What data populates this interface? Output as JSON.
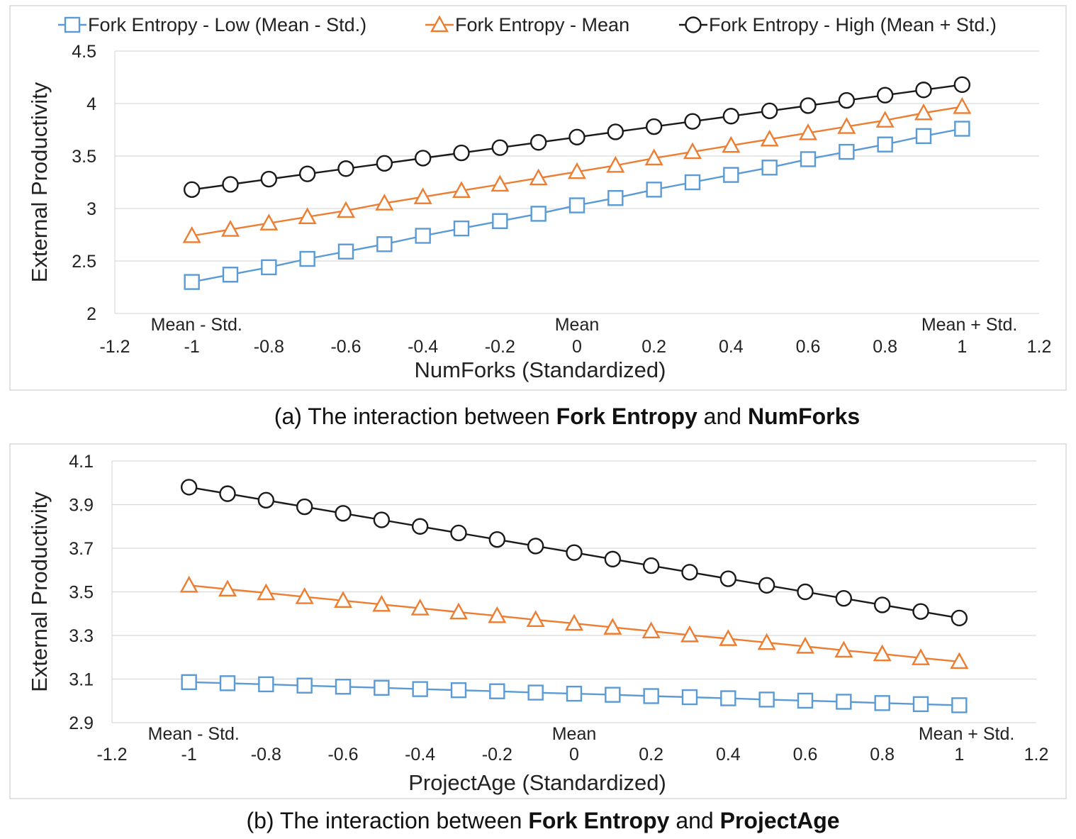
{
  "legend": {
    "items": [
      {
        "label": "Fork Entropy - Low (Mean - Std.)",
        "color": "#5b9bd5",
        "marker": "square"
      },
      {
        "label": "Fork Entropy - Mean",
        "color": "#ed7d31",
        "marker": "triangle"
      },
      {
        "label": "Fork Entropy - High (Mean + Std.)",
        "color": "#1a1a1a",
        "marker": "circle"
      }
    ]
  },
  "chart_data": [
    {
      "type": "line",
      "xlabel": "NumForks (Standardized)",
      "ylabel": "External Productivity",
      "xlim": [
        -1.2,
        1.2
      ],
      "ylim": [
        2,
        4.5
      ],
      "x_ticks": [
        "-1.2",
        "-1",
        "-0.8",
        "-0.6",
        "-0.4",
        "-0.2",
        "0",
        "0.2",
        "0.4",
        "0.6",
        "0.8",
        "1",
        "1.2"
      ],
      "y_ticks": [
        "2",
        "2.5",
        "3",
        "3.5",
        "4",
        "4.5"
      ],
      "annotations": [
        {
          "text": "Mean - Std.",
          "x": -1
        },
        {
          "text": "Mean",
          "x": 0
        },
        {
          "text": "Mean + Std.",
          "x": 1
        }
      ],
      "grid": "horizontal",
      "legend": "top",
      "x": [
        -1,
        -0.9,
        -0.8,
        -0.7,
        -0.6,
        -0.5,
        -0.4,
        -0.3,
        -0.2,
        -0.1,
        0,
        0.1,
        0.2,
        0.3,
        0.4,
        0.5,
        0.6,
        0.7,
        0.8,
        0.9,
        1
      ],
      "series": [
        {
          "name": "Fork Entropy - Low (Mean - Std.)",
          "values": [
            2.3,
            2.37,
            2.44,
            2.52,
            2.59,
            2.66,
            2.74,
            2.81,
            2.88,
            2.95,
            3.03,
            3.1,
            3.18,
            3.25,
            3.32,
            3.39,
            3.47,
            3.54,
            3.61,
            3.69,
            3.76
          ]
        },
        {
          "name": "Fork Entropy - Mean",
          "values": [
            2.74,
            2.8,
            2.86,
            2.92,
            2.98,
            3.05,
            3.11,
            3.17,
            3.23,
            3.29,
            3.35,
            3.41,
            3.48,
            3.54,
            3.6,
            3.66,
            3.72,
            3.78,
            3.84,
            3.91,
            3.97
          ]
        },
        {
          "name": "Fork Entropy - High (Mean + Std.)",
          "values": [
            3.18,
            3.23,
            3.28,
            3.33,
            3.38,
            3.43,
            3.48,
            3.53,
            3.58,
            3.63,
            3.68,
            3.73,
            3.78,
            3.83,
            3.88,
            3.93,
            3.98,
            4.03,
            4.08,
            4.13,
            4.18
          ]
        }
      ],
      "caption": {
        "pre": "(a) The interaction between ",
        "b1": "Fork Entropy",
        "mid": " and ",
        "b2": "NumForks"
      }
    },
    {
      "type": "line",
      "xlabel": "ProjectAge (Standardized)",
      "ylabel": "External Productivity",
      "xlim": [
        -1.2,
        1.2
      ],
      "ylim": [
        2.9,
        4.1
      ],
      "x_ticks": [
        "-1.2",
        "-1",
        "-0.8",
        "-0.6",
        "-0.4",
        "-0.2",
        "0",
        "0.2",
        "0.4",
        "0.6",
        "0.8",
        "1",
        "1.2"
      ],
      "y_ticks": [
        "2.9",
        "3.1",
        "3.3",
        "3.5",
        "3.7",
        "3.9",
        "4.1"
      ],
      "annotations": [
        {
          "text": "Mean - Std.",
          "x": -1
        },
        {
          "text": "Mean",
          "x": 0
        },
        {
          "text": "Mean + Std.",
          "x": 1
        }
      ],
      "grid": "horizontal",
      "x": [
        -1,
        -0.9,
        -0.8,
        -0.7,
        -0.6,
        -0.5,
        -0.4,
        -0.3,
        -0.2,
        -0.1,
        0,
        0.1,
        0.2,
        0.3,
        0.4,
        0.5,
        0.6,
        0.7,
        0.8,
        0.9,
        1
      ],
      "series": [
        {
          "name": "Fork Entropy - Low (Mean - Std.)",
          "values": [
            3.086,
            3.081,
            3.076,
            3.07,
            3.065,
            3.06,
            3.054,
            3.049,
            3.044,
            3.038,
            3.033,
            3.028,
            3.022,
            3.017,
            3.012,
            3.006,
            3.001,
            2.996,
            2.99,
            2.985,
            2.98
          ]
        },
        {
          "name": "Fork Entropy - Mean",
          "values": [
            3.53,
            3.512,
            3.495,
            3.477,
            3.46,
            3.442,
            3.425,
            3.407,
            3.39,
            3.372,
            3.355,
            3.337,
            3.32,
            3.302,
            3.285,
            3.267,
            3.25,
            3.232,
            3.215,
            3.197,
            3.18
          ]
        },
        {
          "name": "Fork Entropy - High (Mean + Std.)",
          "values": [
            3.98,
            3.95,
            3.92,
            3.89,
            3.86,
            3.83,
            3.8,
            3.77,
            3.74,
            3.71,
            3.68,
            3.65,
            3.62,
            3.59,
            3.56,
            3.53,
            3.5,
            3.47,
            3.44,
            3.41,
            3.38
          ]
        }
      ],
      "caption": {
        "pre": "(b) The interaction between ",
        "b1": "Fork Entropy",
        "mid": " and ",
        "b2": "ProjectAge"
      }
    }
  ]
}
